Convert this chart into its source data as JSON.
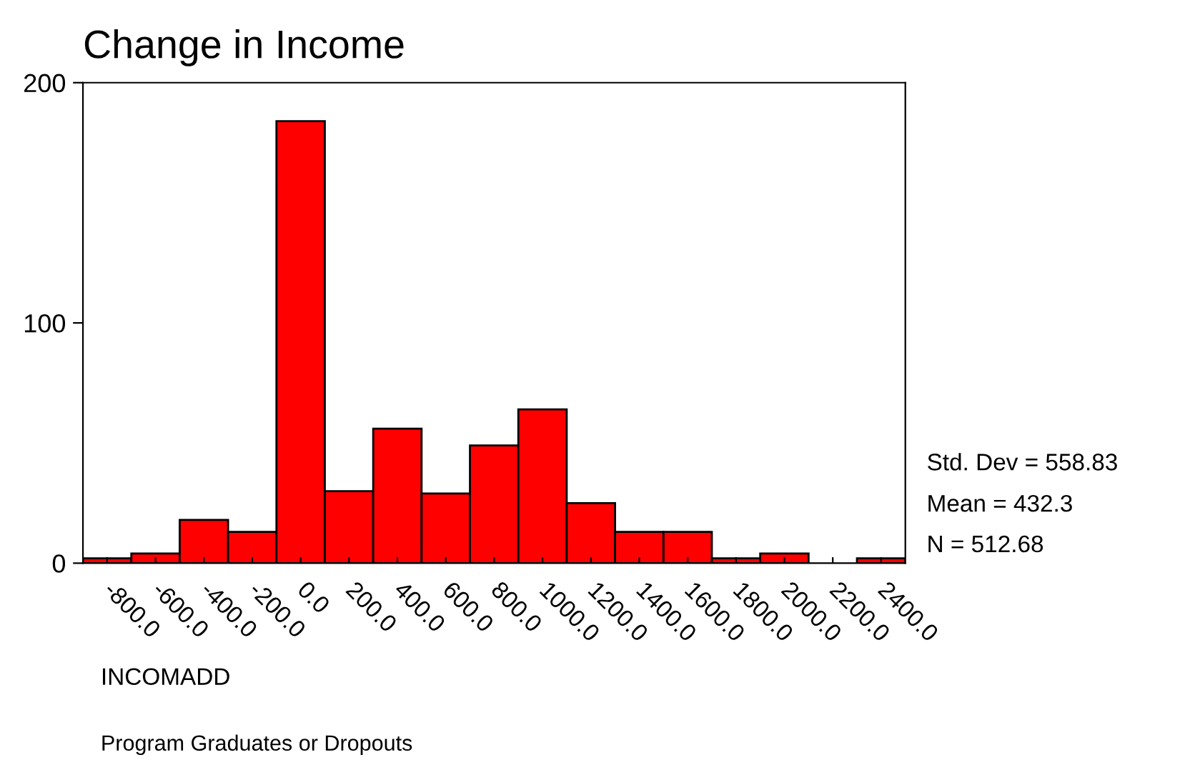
{
  "chart_data": {
    "type": "histogram",
    "title": "Change in Income",
    "xlabel": "INCOMADD",
    "bins": [
      -900,
      -700,
      -500,
      -300,
      -100,
      100,
      300,
      500,
      700,
      900,
      1100,
      1300,
      1500,
      1700,
      1900,
      2100,
      2300,
      2500
    ],
    "values": [
      2,
      4,
      18,
      13,
      184,
      30,
      56,
      29,
      49,
      64,
      25,
      13,
      13,
      2,
      4,
      0,
      2
    ],
    "color": "#ff0000",
    "xlim": [
      -900,
      2500
    ],
    "ylim": [
      0,
      200
    ],
    "yticks": [
      0,
      100,
      200
    ],
    "xticks": [
      {
        "value": -800,
        "label": "-800.0"
      },
      {
        "value": -600,
        "label": "-600.0"
      },
      {
        "value": -400,
        "label": "-400.0"
      },
      {
        "value": -200,
        "label": "-200.0"
      },
      {
        "value": 0,
        "label": "0.0"
      },
      {
        "value": 200,
        "label": "200.0"
      },
      {
        "value": 400,
        "label": "400.0"
      },
      {
        "value": 600,
        "label": "600.0"
      },
      {
        "value": 800,
        "label": "800.0"
      },
      {
        "value": 1000,
        "label": "1000.0"
      },
      {
        "value": 1200,
        "label": "1200.0"
      },
      {
        "value": 1400,
        "label": "1400.0"
      },
      {
        "value": 1600,
        "label": "1600.0"
      },
      {
        "value": 1800,
        "label": "1800.0"
      },
      {
        "value": 2000,
        "label": "2000.0"
      },
      {
        "value": 2200,
        "label": "2200.0"
      },
      {
        "value": 2400,
        "label": "2400.0"
      }
    ],
    "grid": false,
    "annotations": [
      "Std. Dev = 558.83",
      "Mean = 432.3",
      "N = 512.68",
      "Program Graduates or Dropouts"
    ]
  }
}
